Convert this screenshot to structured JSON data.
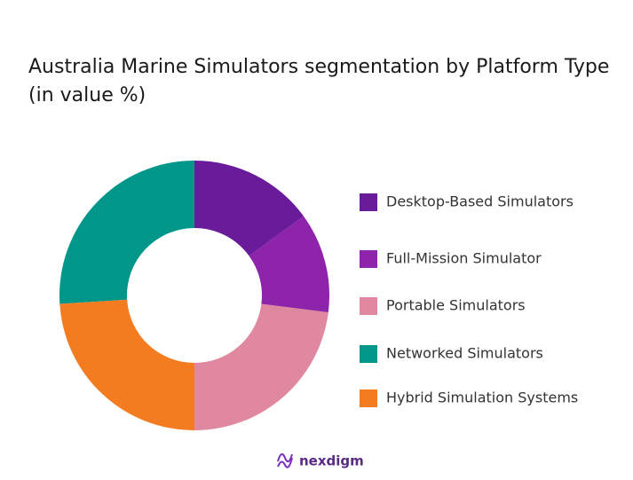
{
  "chart_data": {
    "type": "donut",
    "title": "Australia Marine Simulators  segmentation by Platform Type (in value %)",
    "categories": [
      "Desktop-Based Simulators",
      "Full-Mission Simulator",
      "Portable Simulators",
      "Hybrid Simulation Systems",
      "Networked Simulators"
    ],
    "values": [
      15,
      12,
      23,
      24,
      26
    ],
    "colors": [
      "#6a1b9a",
      "#8e24aa",
      "#e0889f",
      "#f47c20",
      "#00968a"
    ],
    "logo": "nexdigm"
  }
}
